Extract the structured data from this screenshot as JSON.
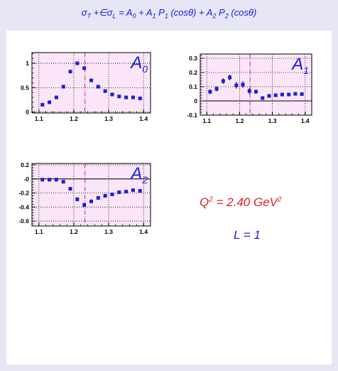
{
  "header": {
    "formula": {
      "s1": "σ",
      "s1_sub": "T",
      "plus": " +∈",
      "s2": "σ",
      "s2_sub": "L",
      "eq": " = A",
      "a0_sub": "0",
      "p1": " + A",
      "a1_sub": "1",
      "p1b": " P",
      "p1_sub": "1",
      "p1c": " (cosθ) + A",
      "a2_sub": "2",
      "p2b": " P",
      "p2_sub": "2",
      "p2c": " (cosθ)"
    }
  },
  "annotations": {
    "q2_prefix": "Q",
    "q2_exp": "2",
    "q2_mid": " = 2.40 GeV",
    "q2_unit_exp": "2",
    "l_label": "L = 1"
  },
  "colors": {
    "background": "#e6e6f5",
    "plot_bg": "#fae6f8",
    "marker": "#1c1ce0",
    "dashed_line": "#d02090",
    "formula_text": "#1c1ce0",
    "q2_text": "#e61e1e"
  },
  "chart_data": [
    {
      "type": "scatter",
      "id": "A0",
      "title": "A",
      "title_sub": "0",
      "xlim": [
        1.08,
        1.42
      ],
      "ylim": [
        -0.02,
        1.22
      ],
      "xticks": [
        1.1,
        1.2,
        1.3,
        1.4
      ],
      "xtick_labels": [
        "1.1",
        "1.2",
        "1.3",
        "1.4"
      ],
      "yticks": [
        0,
        0.5,
        1
      ],
      "ytick_labels": [
        "0",
        "0.5",
        "1"
      ],
      "zero_line": false,
      "vline": 1.232,
      "grid": "dotted",
      "x": [
        1.11,
        1.13,
        1.15,
        1.17,
        1.19,
        1.21,
        1.23,
        1.25,
        1.27,
        1.29,
        1.31,
        1.33,
        1.35,
        1.37,
        1.39
      ],
      "y": [
        0.15,
        0.2,
        0.3,
        0.52,
        0.83,
        1.0,
        0.9,
        0.65,
        0.52,
        0.43,
        0.36,
        0.32,
        0.3,
        0.3,
        0.28
      ],
      "err": [
        0,
        0,
        0,
        0,
        0,
        0,
        0,
        0,
        0,
        0,
        0,
        0,
        0,
        0,
        0
      ]
    },
    {
      "type": "scatter",
      "id": "A1",
      "title": "A",
      "title_sub": "1",
      "xlim": [
        1.08,
        1.42
      ],
      "ylim": [
        -0.1,
        0.33
      ],
      "xticks": [
        1.1,
        1.2,
        1.3,
        1.4
      ],
      "xtick_labels": [
        "1.1",
        "1.2",
        "1.3",
        "1.4"
      ],
      "yticks": [
        -0.1,
        0,
        0.1,
        0.2,
        0.3
      ],
      "ytick_labels": [
        "-0.1",
        "0",
        "0.1",
        "0.2",
        "0.3"
      ],
      "zero_line": true,
      "vline": 1.232,
      "grid": "dotted",
      "x": [
        1.11,
        1.13,
        1.15,
        1.17,
        1.19,
        1.21,
        1.23,
        1.25,
        1.27,
        1.29,
        1.31,
        1.33,
        1.35,
        1.37,
        1.39
      ],
      "y": [
        0.065,
        0.085,
        0.14,
        0.165,
        0.11,
        0.115,
        0.07,
        0.065,
        0.02,
        0.035,
        0.04,
        0.045,
        0.045,
        0.05,
        0.048
      ],
      "err": [
        0.018,
        0.018,
        0.02,
        0.02,
        0.024,
        0.024,
        0.02,
        0.014,
        0.01,
        0.008,
        0.006,
        0.006,
        0.006,
        0.006,
        0.006
      ]
    },
    {
      "type": "scatter",
      "id": "A2",
      "title": "A",
      "title_sub": "2",
      "xlim": [
        1.08,
        1.42
      ],
      "ylim": [
        -0.67,
        0.22
      ],
      "xticks": [
        1.1,
        1.2,
        1.3,
        1.4
      ],
      "xtick_labels": [
        "1.1",
        "1.2",
        "1.3",
        "1.4"
      ],
      "yticks": [
        -0.6,
        -0.4,
        -0.2,
        0,
        0.2
      ],
      "ytick_labels": [
        "-0.6",
        "-0.4",
        "-0.2",
        "-0",
        "0.2"
      ],
      "zero_line": true,
      "vline": 1.232,
      "grid": "dotted",
      "x": [
        1.11,
        1.13,
        1.15,
        1.17,
        1.19,
        1.21,
        1.23,
        1.25,
        1.27,
        1.29,
        1.31,
        1.33,
        1.35,
        1.37,
        1.39
      ],
      "y": [
        -0.01,
        -0.01,
        -0.01,
        -0.04,
        -0.14,
        -0.29,
        -0.37,
        -0.32,
        -0.27,
        -0.24,
        -0.22,
        -0.19,
        -0.18,
        -0.16,
        -0.17
      ],
      "err": [
        0.012,
        0.012,
        0.012,
        0.015,
        0.02,
        0.03,
        0.032,
        0.025,
        0.02,
        0.015,
        0.012,
        0.012,
        0.012,
        0.012,
        0.012
      ]
    }
  ]
}
